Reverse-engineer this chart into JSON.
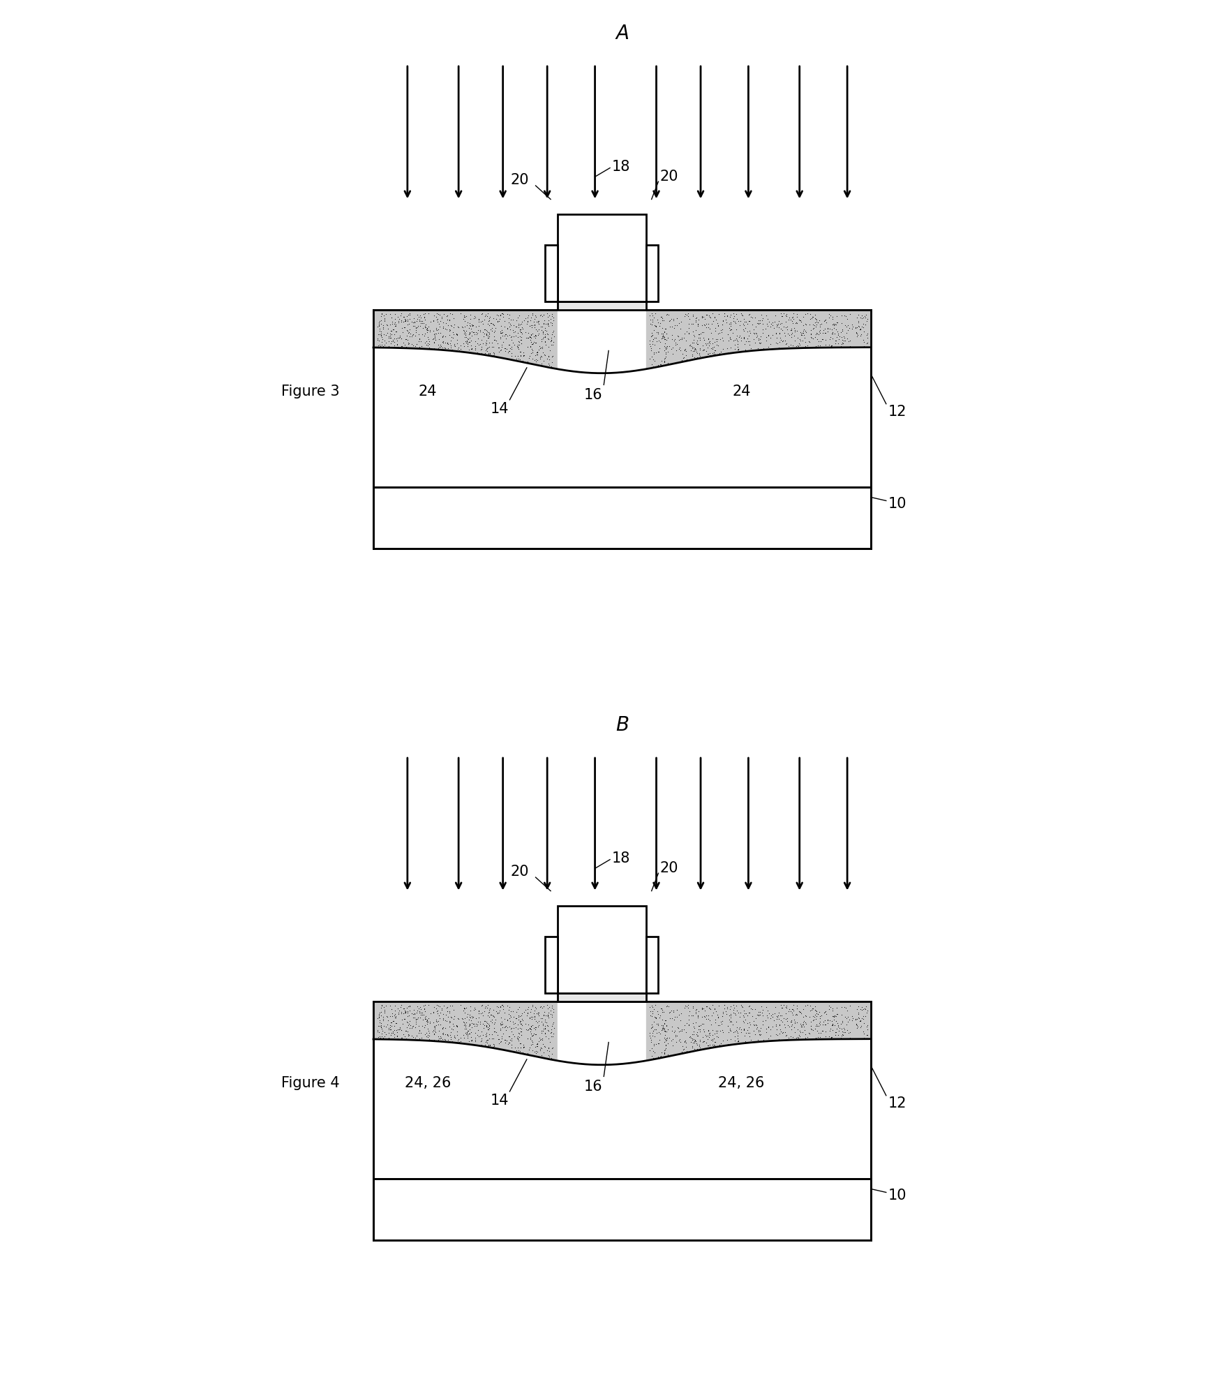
{
  "fig_width": 17.54,
  "fig_height": 19.96,
  "bg_color": "#ffffff",
  "figures": [
    {
      "label": "A",
      "fig_label": "Figure 3",
      "source_labels": [
        "24",
        "24"
      ],
      "fig_idx": 0
    },
    {
      "label": "B",
      "fig_label": "Figure 4",
      "source_labels": [
        "24, 26",
        "24, 26"
      ],
      "fig_idx": 1
    }
  ]
}
